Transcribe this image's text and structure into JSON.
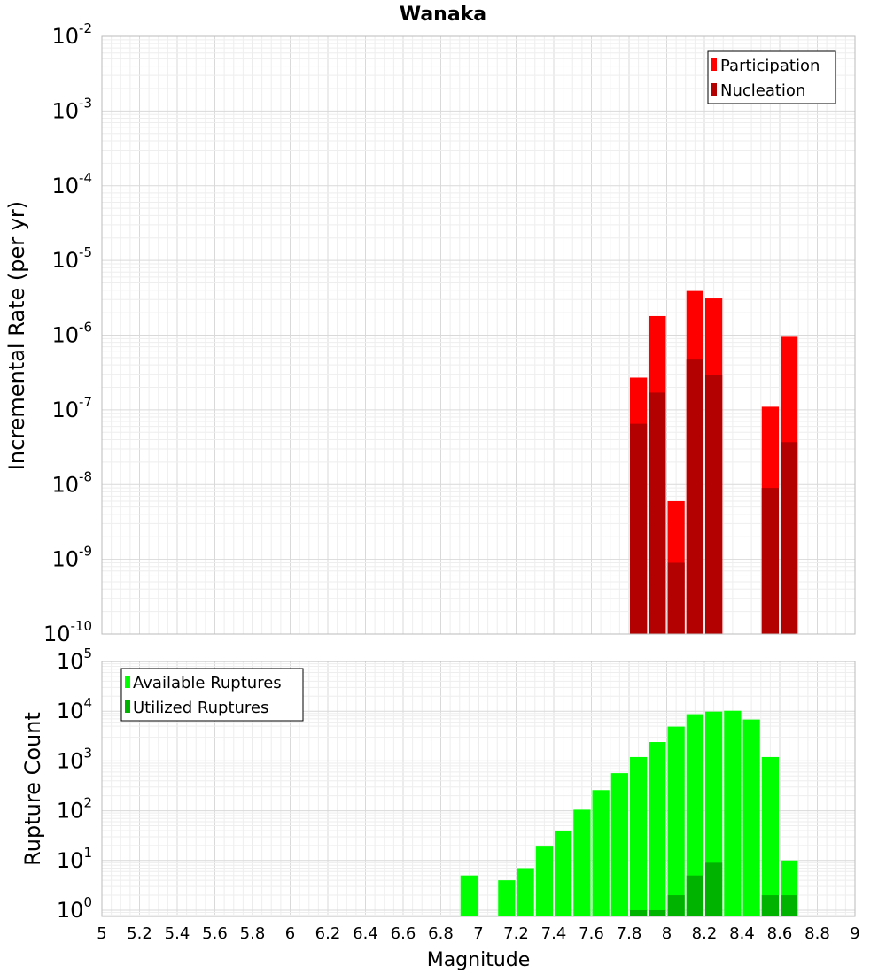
{
  "chart_data": [
    {
      "type": "bar",
      "title": "Wanaka",
      "xlabel": "",
      "ylabel": "Incremental Rate (per yr)",
      "yscale": "log",
      "ylim": [
        1e-10,
        0.01
      ],
      "xlim": [
        5,
        9
      ],
      "ytick_exponents": [
        "-10",
        "-9",
        "-8",
        "-7",
        "-6",
        "-5",
        "-4",
        "-3",
        "-2"
      ],
      "legend": {
        "placement": "top-right"
      },
      "grid": true,
      "series": [
        {
          "name": "Participation",
          "color": "#ff0000",
          "x": [
            7.85,
            7.95,
            8.05,
            8.15,
            8.25,
            8.55,
            8.65
          ],
          "values": [
            2.7e-07,
            1.8e-06,
            6e-09,
            3.9e-06,
            3.1e-06,
            1.1e-07,
            9.5e-07
          ]
        },
        {
          "name": "Nucleation",
          "color": "#b30000",
          "x": [
            7.85,
            7.95,
            8.05,
            8.15,
            8.25,
            8.55,
            8.65
          ],
          "values": [
            6.5e-08,
            1.7e-07,
            9e-10,
            4.7e-07,
            2.9e-07,
            9e-09,
            3.7e-08
          ]
        }
      ]
    },
    {
      "type": "bar",
      "title": "",
      "xlabel": "Magnitude",
      "ylabel": "Rupture Count",
      "yscale": "log",
      "ylim": [
        0.75,
        100000.0
      ],
      "xlim": [
        5,
        9
      ],
      "ytick_exponents": [
        "0",
        "1",
        "2",
        "3",
        "4",
        "5"
      ],
      "xticks": [
        "5",
        "5.2",
        "5.4",
        "5.6",
        "5.8",
        "6",
        "6.2",
        "6.4",
        "6.6",
        "6.8",
        "7",
        "7.2",
        "7.4",
        "7.6",
        "7.8",
        "8",
        "8.2",
        "8.4",
        "8.6",
        "8.8",
        "9"
      ],
      "legend": {
        "placement": "top-left"
      },
      "grid": true,
      "series": [
        {
          "name": "Available Ruptures",
          "color": "#00ff00",
          "x": [
            6.95,
            7.15,
            7.25,
            7.35,
            7.45,
            7.55,
            7.65,
            7.75,
            7.85,
            7.95,
            8.05,
            8.15,
            8.25,
            8.35,
            8.45,
            8.55,
            8.65
          ],
          "values": [
            5,
            4,
            7,
            19,
            40,
            105,
            260,
            570,
            1200,
            2400,
            4900,
            8700,
            9800,
            10200,
            6800,
            1200,
            10
          ]
        },
        {
          "name": "Utilized Ruptures",
          "color": "#00b300",
          "x": [
            7.85,
            7.95,
            8.05,
            8.15,
            8.25,
            8.55,
            8.65
          ],
          "values": [
            1,
            1,
            2,
            5,
            9,
            2,
            2
          ]
        }
      ]
    }
  ]
}
